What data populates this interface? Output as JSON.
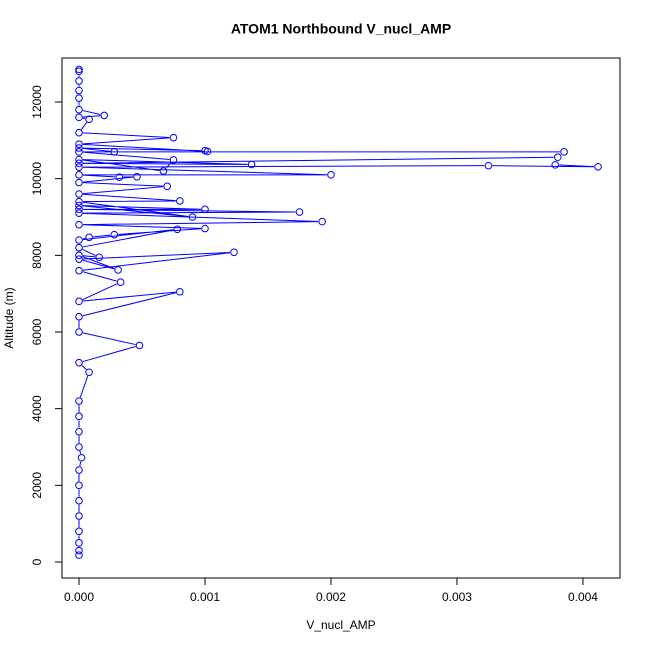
{
  "chart_data": {
    "type": "line",
    "markers": true,
    "title": "ATOM1 Northbound V_nucl_AMP",
    "x_label": "V_nucl_AMP",
    "y_label": "Altitude (m)",
    "color": "#0000ff",
    "x": [
      0,
      0,
      0,
      0,
      0,
      0,
      0,
      0,
      2e-05,
      0,
      0,
      0,
      0,
      8e-05,
      0,
      0.00048,
      0,
      0,
      0.0008,
      0,
      0.00033,
      0,
      0.00123,
      0,
      0.00031,
      0,
      0.00016,
      0,
      0.00078,
      0,
      8e-05,
      0.00028,
      0.001,
      0,
      0.00193,
      0,
      0.00175,
      0,
      0.001,
      0,
      0.0009,
      0,
      0.0008,
      0,
      0.0007,
      0,
      0.00046,
      0.00032,
      0,
      0.002,
      0,
      0.00325,
      0.00412,
      0.00378,
      0.0038,
      0,
      0.00137,
      0,
      0.00067,
      0.00075,
      0,
      0.00385,
      0.00028,
      0,
      0.001,
      0.00102,
      0,
      0.00075,
      0,
      8e-05,
      0,
      0.0002,
      0,
      0,
      0,
      0,
      0,
      0
    ],
    "values": [
      180,
      300,
      500,
      800,
      1200,
      1600,
      2000,
      2400,
      2720,
      3000,
      3400,
      3800,
      4200,
      4950,
      5200,
      5650,
      6000,
      6400,
      7050,
      6800,
      7300,
      7600,
      8080,
      7900,
      7620,
      8000,
      7950,
      8200,
      8680,
      8400,
      8470,
      8540,
      8700,
      8800,
      8880,
      9100,
      9130,
      9200,
      9200,
      9300,
      9000,
      9400,
      9420,
      9600,
      9800,
      9900,
      10050,
      10040,
      10100,
      10100,
      10300,
      10340,
      10310,
      10360,
      10560,
      10400,
      10370,
      10500,
      10200,
      10490,
      10700,
      10700,
      10700,
      10800,
      10730,
      10710,
      10900,
      11070,
      11200,
      11550,
      11600,
      11650,
      11800,
      12100,
      12300,
      12550,
      12800,
      12850
    ],
    "xlim": [
      -0.000135,
      0.004294
    ],
    "ylim": [
      -417,
      13148
    ],
    "xticks": [
      {
        "value": 0,
        "label": "0.000"
      },
      {
        "value": 0.001,
        "label": "0.001"
      },
      {
        "value": 0.002,
        "label": "0.002"
      },
      {
        "value": 0.003,
        "label": "0.003"
      },
      {
        "value": 0.004,
        "label": "0.004"
      }
    ],
    "yticks": [
      0,
      2000,
      4000,
      6000,
      8000,
      10000,
      12000
    ]
  }
}
